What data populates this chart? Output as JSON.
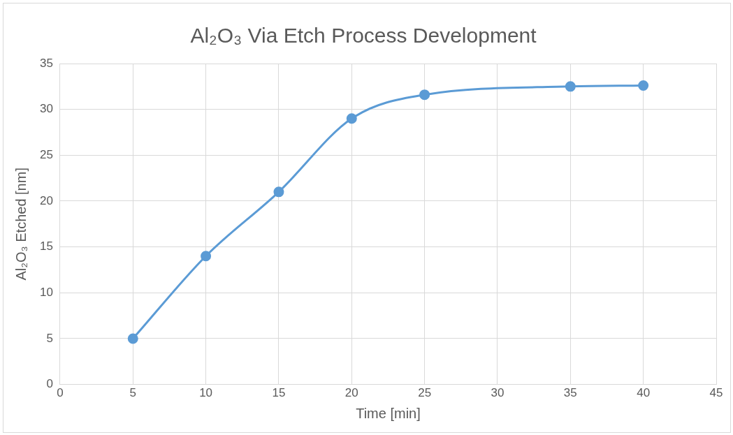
{
  "chart_data": {
    "type": "line",
    "title": "Al₂O₃ Via Etch Process Development",
    "xlabel": "Time [min]",
    "ylabel": "Al₂O₃ Etched [nm]",
    "x": [
      5,
      10,
      15,
      20,
      25,
      35,
      40
    ],
    "series": [
      {
        "color": "#5b9bd5",
        "values": [
          5,
          14,
          21,
          29,
          31.6,
          32.5,
          32.6
        ]
      }
    ],
    "xlim": [
      0,
      45
    ],
    "xticks": [
      0,
      5,
      10,
      15,
      20,
      25,
      30,
      35,
      40,
      45
    ],
    "ylim": [
      0,
      35
    ],
    "yticks": [
      0,
      5,
      10,
      15,
      20,
      25,
      30,
      35
    ],
    "grid": true,
    "legend": false,
    "marker": "circle",
    "line_style": "solid"
  }
}
